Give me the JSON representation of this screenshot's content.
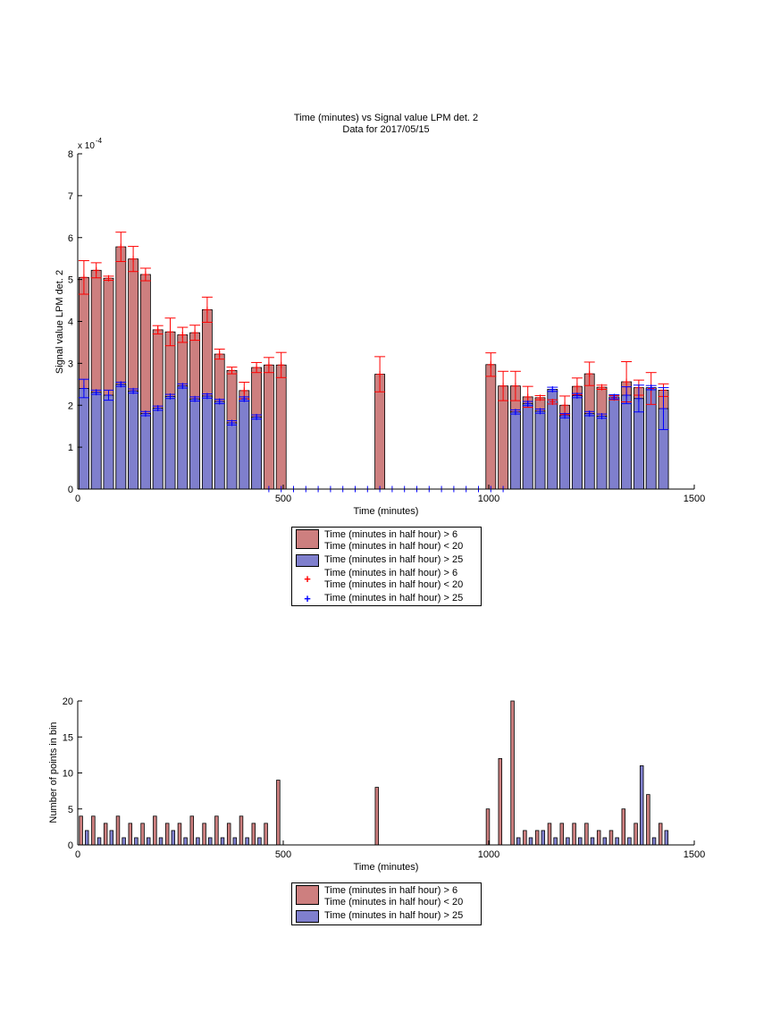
{
  "colors": {
    "red_fill": "#cd7f7f",
    "blue_fill": "#7f7fcd",
    "red_err": "#ff0000",
    "blue_err": "#0000ff"
  },
  "top": {
    "title_line1": "Time (minutes) vs Signal value LPM det. 2",
    "title_line2": "Data for 2017/05/15",
    "xlabel": "Time (minutes)",
    "ylabel": "Signal value LPM det. 2",
    "y_exponent_label": "x 10",
    "y_exponent_power": "-4",
    "legend": [
      {
        "label1": "Time (minutes in half hour) > 6",
        "label2": "Time (minutes in half hour) < 20"
      },
      {
        "label1": "Time (minutes in half hour) > 25"
      },
      {
        "symbol": "+",
        "label1": "Time (minutes in half hour) > 6",
        "label2": "Time (minutes in half hour) < 20"
      },
      {
        "symbol": "+",
        "label1": "Time (minutes in half hour) > 25"
      }
    ]
  },
  "bottom": {
    "xlabel": "Time (minutes)",
    "ylabel": "Number of points in bin",
    "legend": [
      {
        "label1": "Time (minutes in half hour) > 6",
        "label2": "Time (minutes in half hour) < 20"
      },
      {
        "label1": "Time (minutes in half hour) > 25"
      }
    ]
  },
  "chart_data": [
    {
      "type": "bar",
      "title": "Time (minutes) vs Signal value LPM det. 2 / Data for 2017/05/15",
      "xlabel": "Time (minutes)",
      "ylabel": "Signal value LPM det. 2",
      "y_unit_multiplier": "x 10^-4",
      "xlim": [
        0,
        1500
      ],
      "ylim": [
        0,
        8
      ],
      "xticks": [
        0,
        500,
        1000,
        1500
      ],
      "yticks": [
        0,
        1,
        2,
        3,
        4,
        5,
        6,
        7,
        8
      ],
      "grid": false,
      "legend_position": "below",
      "series": [
        {
          "name": "Time (minutes in half hour) > 6 / Time (minutes in half hour) < 20",
          "x": [
            15,
            45,
            75,
            105,
            135,
            165,
            195,
            225,
            255,
            285,
            315,
            345,
            375,
            405,
            435,
            465,
            495,
            735,
            1005,
            1035,
            1065,
            1095,
            1125,
            1155,
            1185,
            1215,
            1245,
            1275,
            1305,
            1335,
            1365,
            1395,
            1425
          ],
          "values": [
            5.05,
            5.22,
            5.03,
            5.78,
            5.49,
            5.12,
            3.8,
            3.75,
            3.68,
            3.73,
            4.28,
            3.22,
            2.83,
            2.35,
            2.9,
            2.96,
            2.96,
            2.74,
            2.97,
            2.46,
            2.46,
            2.2,
            2.18,
            2.08,
            2.0,
            2.45,
            2.75,
            2.43,
            2.18,
            2.56,
            2.42,
            2.4,
            2.36
          ],
          "errors": [
            0.4,
            0.18,
            0.05,
            0.35,
            0.3,
            0.15,
            0.1,
            0.33,
            0.18,
            0.18,
            0.3,
            0.12,
            0.08,
            0.2,
            0.12,
            0.18,
            0.3,
            0.42,
            0.28,
            0.35,
            0.35,
            0.25,
            0.05,
            0.05,
            0.22,
            0.2,
            0.28,
            0.05,
            0.05,
            0.48,
            0.18,
            0.38,
            0.15
          ]
        },
        {
          "name": "Time (minutes in half hour) > 25",
          "x": [
            15,
            45,
            75,
            105,
            135,
            165,
            195,
            225,
            255,
            285,
            315,
            345,
            375,
            405,
            435,
            1065,
            1095,
            1125,
            1155,
            1185,
            1215,
            1245,
            1275,
            1305,
            1335,
            1365,
            1395,
            1425
          ],
          "values": [
            2.4,
            2.31,
            2.24,
            2.5,
            2.34,
            1.8,
            1.93,
            2.21,
            2.46,
            2.15,
            2.22,
            2.09,
            1.58,
            2.15,
            1.72,
            1.84,
            2.04,
            1.86,
            2.38,
            1.75,
            2.23,
            1.8,
            1.74,
            2.2,
            2.24,
            2.16,
            2.42,
            1.92
          ],
          "errors": [
            0.22,
            0.05,
            0.12,
            0.05,
            0.05,
            0.05,
            0.05,
            0.05,
            0.05,
            0.05,
            0.05,
            0.05,
            0.05,
            0.05,
            0.05,
            0.05,
            0.05,
            0.05,
            0.05,
            0.05,
            0.05,
            0.05,
            0.05,
            0.05,
            0.2,
            0.32,
            0.05,
            0.5
          ]
        }
      ],
      "empty_bin_markers_x": [
        465,
        495,
        525,
        555,
        585,
        615,
        645,
        675,
        705,
        735,
        765,
        795,
        825,
        855,
        885,
        915,
        945,
        975,
        1005,
        1035
      ]
    },
    {
      "type": "bar",
      "xlabel": "Time (minutes)",
      "ylabel": "Number of points in bin",
      "xlim": [
        0,
        1500
      ],
      "ylim": [
        0,
        20
      ],
      "xticks": [
        0,
        500,
        1000,
        1500
      ],
      "yticks": [
        0,
        5,
        10,
        15,
        20
      ],
      "grid": false,
      "legend_position": "below",
      "series": [
        {
          "name": "Time (minutes in half hour) > 6 / Time (minutes in half hour) < 20",
          "x": [
            15,
            45,
            75,
            105,
            135,
            165,
            195,
            225,
            255,
            285,
            315,
            345,
            375,
            405,
            435,
            465,
            495,
            735,
            1005,
            1035,
            1065,
            1095,
            1125,
            1155,
            1185,
            1215,
            1245,
            1275,
            1305,
            1335,
            1365,
            1395,
            1425
          ],
          "values": [
            4,
            4,
            3,
            4,
            3,
            3,
            4,
            3,
            3,
            4,
            3,
            4,
            3,
            4,
            3,
            3,
            9,
            8,
            5,
            12,
            20,
            2,
            2,
            3,
            3,
            3,
            3,
            2,
            2,
            5,
            3,
            7,
            3
          ]
        },
        {
          "name": "Time (minutes in half hour) > 25",
          "x": [
            15,
            45,
            75,
            105,
            135,
            165,
            195,
            225,
            255,
            285,
            315,
            345,
            375,
            405,
            435,
            1065,
            1095,
            1125,
            1155,
            1185,
            1215,
            1245,
            1275,
            1305,
            1335,
            1365,
            1395,
            1425
          ],
          "values": [
            2,
            1,
            2,
            1,
            1,
            1,
            1,
            2,
            1,
            1,
            1,
            1,
            1,
            1,
            1,
            1,
            1,
            2,
            1,
            1,
            1,
            1,
            1,
            1,
            1,
            11,
            1,
            2
          ]
        }
      ]
    }
  ]
}
